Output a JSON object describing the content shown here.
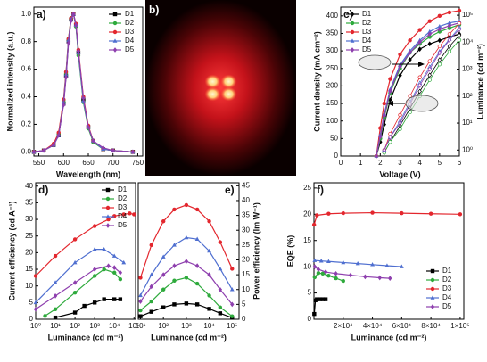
{
  "chart_data": [
    {
      "type": "line",
      "panel_label": "a)",
      "x_label": "Wavelength (nm)",
      "y_label": "Normalized intensity (a.u.)",
      "x": [
        540,
        560,
        580,
        590,
        600,
        605,
        610,
        615,
        620,
        625,
        630,
        640,
        650,
        660,
        680,
        700,
        740
      ],
      "xlim": [
        540,
        760
      ],
      "xticks": [
        550,
        600,
        650,
        700,
        750
      ],
      "ylim": [
        -0.03,
        1.05
      ],
      "yticks": [
        {
          "value": 0,
          "label": "0.0"
        },
        0.2,
        0.4,
        0.6,
        0.8,
        {
          "value": 1,
          "label": "1.0"
        }
      ],
      "legend": "upper right",
      "series": [
        {
          "name": "D1",
          "color": "#000000",
          "marker": "square",
          "values": [
            0,
            0.01,
            0.05,
            0.12,
            0.35,
            0.55,
            0.8,
            0.96,
            1.0,
            0.92,
            0.72,
            0.38,
            0.18,
            0.08,
            0.02,
            0.01,
            0
          ]
        },
        {
          "name": "D2",
          "color": "#2eaa3c",
          "marker": "circle",
          "values": [
            0,
            0.01,
            0.05,
            0.13,
            0.37,
            0.57,
            0.82,
            0.97,
            1.0,
            0.91,
            0.7,
            0.36,
            0.17,
            0.07,
            0.02,
            0.01,
            0
          ]
        },
        {
          "name": "D3",
          "color": "#e3262d",
          "marker": "circle",
          "values": [
            0,
            0.01,
            0.06,
            0.14,
            0.38,
            0.58,
            0.82,
            0.97,
            1.0,
            0.93,
            0.74,
            0.4,
            0.19,
            0.08,
            0.02,
            0.01,
            0
          ]
        },
        {
          "name": "D4",
          "color": "#4f6fd0",
          "marker": "triangle",
          "values": [
            0,
            0.01,
            0.05,
            0.12,
            0.36,
            0.56,
            0.81,
            0.96,
            1.0,
            0.92,
            0.72,
            0.37,
            0.18,
            0.08,
            0.02,
            0.01,
            0
          ]
        },
        {
          "name": "D5",
          "color": "#8e3fae",
          "marker": "diamond",
          "values": [
            0,
            0.01,
            0.05,
            0.12,
            0.34,
            0.54,
            0.79,
            0.95,
            1.0,
            0.92,
            0.73,
            0.39,
            0.18,
            0.08,
            0.03,
            0.01,
            0
          ]
        }
      ]
    },
    {
      "type": "image",
      "panel_label": "b)"
    },
    {
      "type": "line",
      "panel_label": "c)",
      "x_label": "Voltage (V)",
      "y_label": "Current density (mA cm⁻²)",
      "y2_label": "Luminance (cd m⁻²)",
      "xlim": [
        0,
        6
      ],
      "xticks": [
        0,
        1,
        2,
        3,
        4,
        5,
        6
      ],
      "ylim": [
        0,
        425
      ],
      "yticks": [
        0,
        50,
        100,
        150,
        200,
        250,
        300,
        350,
        400
      ],
      "y2scale": "log",
      "y2lim": [
        0.6,
        200000
      ],
      "y2ticks": [
        {
          "value": 1,
          "label": "10⁰"
        },
        {
          "value": 10,
          "label": "10¹"
        },
        {
          "value": 100,
          "label": "10²"
        },
        {
          "value": 1000,
          "label": "10³"
        },
        {
          "value": 10000,
          "label": "10⁴"
        },
        {
          "value": 100000,
          "label": "10⁵"
        }
      ],
      "legend": "upper left",
      "series": [
        {
          "name": "D1",
          "color": "#000000",
          "marker": "diamond",
          "x": [
            1.8,
            2,
            2.2,
            2.5,
            3,
            3.5,
            4,
            4.5,
            5,
            5.5,
            6
          ],
          "values": [
            0,
            40,
            90,
            160,
            230,
            275,
            305,
            320,
            330,
            340,
            348
          ]
        },
        {
          "name": "D2",
          "color": "#2eaa3c",
          "marker": "circle",
          "x": [
            1.8,
            2,
            2.2,
            2.5,
            3,
            3.5,
            4,
            4.5,
            5,
            5.5,
            6
          ],
          "values": [
            0,
            50,
            110,
            180,
            250,
            295,
            320,
            340,
            355,
            365,
            375
          ]
        },
        {
          "name": "D3",
          "color": "#e3262d",
          "marker": "circle",
          "x": [
            1.8,
            2,
            2.2,
            2.5,
            3,
            3.5,
            4,
            4.5,
            5,
            5.5,
            6
          ],
          "values": [
            0,
            80,
            150,
            220,
            290,
            330,
            360,
            385,
            400,
            410,
            415
          ]
        },
        {
          "name": "D4",
          "color": "#4f6fd0",
          "marker": "triangle",
          "x": [
            1.8,
            2,
            2.2,
            2.5,
            3,
            3.5,
            4,
            4.5,
            5,
            5.5,
            6
          ],
          "values": [
            0,
            60,
            120,
            190,
            260,
            300,
            330,
            355,
            370,
            380,
            385
          ]
        },
        {
          "name": "D5",
          "color": "#8e3fae",
          "marker": "diamond",
          "x": [
            1.8,
            2,
            2.2,
            2.5,
            3,
            3.5,
            4,
            4.5,
            5,
            5.5,
            6
          ],
          "values": [
            0,
            55,
            115,
            185,
            255,
            295,
            325,
            348,
            362,
            372,
            380
          ]
        },
        {
          "color": "#000000",
          "marker": "diamond",
          "axis": "y2",
          "x": [
            2.2,
            2.5,
            3,
            3.5,
            4,
            4.5,
            5,
            5.5,
            6
          ],
          "values": [
            0.8,
            2,
            8,
            35,
            150,
            600,
            2200,
            7000,
            18000
          ]
        },
        {
          "color": "#2eaa3c",
          "marker": "circle",
          "axis": "y2",
          "x": [
            2.2,
            2.5,
            3,
            3.5,
            4,
            4.5,
            5,
            5.5,
            6
          ],
          "values": [
            0.8,
            2,
            6,
            25,
            100,
            400,
            1500,
            4500,
            12000
          ]
        },
        {
          "color": "#e3262d",
          "marker": "circle",
          "axis": "y2",
          "x": [
            2.2,
            2.5,
            3,
            3.5,
            4,
            4.5,
            5,
            5.5,
            6
          ],
          "values": [
            1,
            4,
            20,
            100,
            500,
            2000,
            7000,
            20000,
            50000
          ]
        },
        {
          "color": "#4f6fd0",
          "marker": "triangle",
          "axis": "y2",
          "x": [
            2.2,
            2.5,
            3,
            3.5,
            4,
            4.5,
            5,
            5.5,
            6
          ],
          "values": [
            1,
            3,
            12,
            60,
            300,
            1200,
            4500,
            13000,
            35000
          ]
        },
        {
          "color": "#8e3fae",
          "marker": "diamond",
          "axis": "y2",
          "x": [
            2.2,
            2.5,
            3,
            3.5,
            4,
            4.5,
            5,
            5.5,
            6
          ],
          "values": [
            1,
            3,
            10,
            50,
            250,
            1000,
            4000,
            12000,
            30000
          ]
        }
      ]
    },
    {
      "type": "line",
      "panel_label": "d)",
      "x_label": "Luminance (cd m⁻²)",
      "y_label": "Current efficiency (cd A⁻¹)",
      "xscale": "log",
      "xlim": [
        1,
        120000
      ],
      "xticks": [
        {
          "value": 1,
          "label": "10⁰"
        },
        {
          "value": 10,
          "label": "10¹"
        },
        {
          "value": 100,
          "label": "10²"
        },
        {
          "value": 1000,
          "label": "10³"
        },
        {
          "value": 10000,
          "label": "10⁴"
        },
        {
          "value": 100000,
          "label": "10⁵"
        }
      ],
      "ylim": [
        0,
        41
      ],
      "yticks": [
        0,
        5,
        10,
        15,
        20,
        25,
        30,
        35,
        40
      ],
      "legend": "upper right",
      "series": [
        {
          "name": "D1",
          "color": "#000000",
          "marker": "square",
          "x": [
            10,
            100,
            300,
            1000,
            3000,
            10000,
            20000
          ],
          "values": [
            0.5,
            2,
            4,
            5,
            6,
            6,
            6
          ]
        },
        {
          "name": "D2",
          "color": "#2eaa3c",
          "marker": "circle",
          "x": [
            3,
            10,
            100,
            1000,
            3000,
            10000,
            20000
          ],
          "values": [
            1,
            3,
            8,
            13,
            15,
            14,
            12
          ]
        },
        {
          "name": "D3",
          "color": "#e3262d",
          "marker": "circle",
          "x": [
            1,
            10,
            100,
            1000,
            5000,
            10000,
            30000,
            60000,
            100000
          ],
          "values": [
            13,
            19,
            24,
            28,
            30,
            31,
            31.5,
            31.8,
            31.5
          ]
        },
        {
          "name": "D4",
          "color": "#4f6fd0",
          "marker": "triangle",
          "x": [
            1,
            10,
            100,
            1000,
            3000,
            10000,
            30000
          ],
          "values": [
            5,
            11,
            17,
            21,
            21,
            19,
            17
          ]
        },
        {
          "name": "D5",
          "color": "#8e3fae",
          "marker": "diamond",
          "x": [
            1,
            10,
            100,
            1000,
            5000,
            10000,
            20000
          ],
          "values": [
            3,
            7,
            11,
            15,
            16,
            15.5,
            14
          ]
        }
      ]
    },
    {
      "type": "line",
      "panel_label": "e)",
      "x_label": "Luminance (cd m⁻²)",
      "y_label": "Power efficiency (lm W⁻¹)",
      "xscale": "log",
      "xlim": [
        8,
        200000
      ],
      "xticks": [
        {
          "value": 10,
          "label": "10¹"
        },
        {
          "value": 100,
          "label": "10²"
        },
        {
          "value": 1000,
          "label": "10³"
        },
        {
          "value": 10000,
          "label": "10⁴"
        },
        {
          "value": 100000,
          "label": "10⁵"
        }
      ],
      "ylim": [
        0,
        46
      ],
      "yticks": [
        0,
        5,
        10,
        15,
        20,
        25,
        30,
        35,
        40,
        45
      ],
      "series": [
        {
          "color": "#000000",
          "marker": "square",
          "x": [
            10,
            30,
            100,
            300,
            1000,
            3000,
            10000,
            30000,
            100000
          ],
          "values": [
            1,
            2.5,
            4,
            5,
            5.3,
            5,
            3.5,
            2,
            0.5
          ]
        },
        {
          "color": "#2eaa3c",
          "marker": "circle",
          "x": [
            10,
            30,
            100,
            300,
            1000,
            3000,
            10000,
            30000,
            100000
          ],
          "values": [
            3,
            6,
            10,
            13,
            14,
            12,
            8,
            4,
            1
          ]
        },
        {
          "color": "#e3262d",
          "marker": "circle",
          "x": [
            10,
            30,
            100,
            300,
            1000,
            3000,
            10000,
            30000,
            100000
          ],
          "values": [
            14,
            25,
            33,
            37,
            38.5,
            37,
            33,
            26,
            17
          ]
        },
        {
          "color": "#4f6fd0",
          "marker": "triangle",
          "x": [
            10,
            30,
            100,
            300,
            1000,
            3000,
            10000,
            30000,
            100000
          ],
          "values": [
            8,
            15,
            21,
            25,
            27.5,
            27,
            23,
            17,
            10
          ]
        },
        {
          "color": "#8e3fae",
          "marker": "diamond",
          "x": [
            10,
            30,
            100,
            300,
            1000,
            3000,
            10000,
            30000,
            100000
          ],
          "values": [
            6,
            11,
            15,
            18,
            19.5,
            18,
            15,
            10,
            5
          ]
        }
      ]
    },
    {
      "type": "line",
      "panel_label": "f)",
      "x_label": "Luminance (cd m⁻²)",
      "y_label": "EQE (%)",
      "xlim": [
        0,
        102500
      ],
      "xticks": [
        {
          "value": 20000,
          "label": "2×10⁴"
        },
        {
          "value": 40000,
          "label": "4×10⁴"
        },
        {
          "value": 60000,
          "label": "6×10⁴"
        },
        {
          "value": 80000,
          "label": "8×10⁴"
        },
        {
          "value": 100000,
          "label": "1×10⁵"
        }
      ],
      "ylim": [
        0,
        26
      ],
      "yticks": [
        0,
        5,
        10,
        15,
        20,
        25
      ],
      "legend": "lower right",
      "series": [
        {
          "name": "D1",
          "color": "#000000",
          "marker": "square",
          "x": [
            200,
            1000,
            2000,
            4000,
            6000,
            8000
          ],
          "values": [
            1,
            3.6,
            3.8,
            3.8,
            3.8,
            3.8
          ]
        },
        {
          "name": "D2",
          "color": "#2eaa3c",
          "marker": "circle",
          "x": [
            500,
            3000,
            6000,
            10000,
            15000,
            20000
          ],
          "values": [
            8,
            8.8,
            8.7,
            8.3,
            7.8,
            7.3
          ]
        },
        {
          "name": "D3",
          "color": "#e3262d",
          "marker": "circle",
          "x": [
            100,
            2000,
            10000,
            20000,
            40000,
            60000,
            80000,
            100000
          ],
          "values": [
            18,
            19.8,
            20.1,
            20.2,
            20.3,
            20.2,
            20.1,
            20
          ]
        },
        {
          "name": "D4",
          "color": "#4f6fd0",
          "marker": "triangle",
          "x": [
            500,
            5000,
            10000,
            20000,
            30000,
            40000,
            50000,
            60000
          ],
          "values": [
            11.2,
            11.1,
            11,
            10.8,
            10.6,
            10.4,
            10.2,
            10
          ]
        },
        {
          "name": "D5",
          "color": "#8e3fae",
          "marker": "diamond",
          "x": [
            500,
            3000,
            8000,
            15000,
            25000,
            35000,
            45000,
            52000
          ],
          "values": [
            10,
            9.5,
            9,
            8.7,
            8.4,
            8.1,
            7.9,
            7.8
          ]
        }
      ]
    }
  ]
}
